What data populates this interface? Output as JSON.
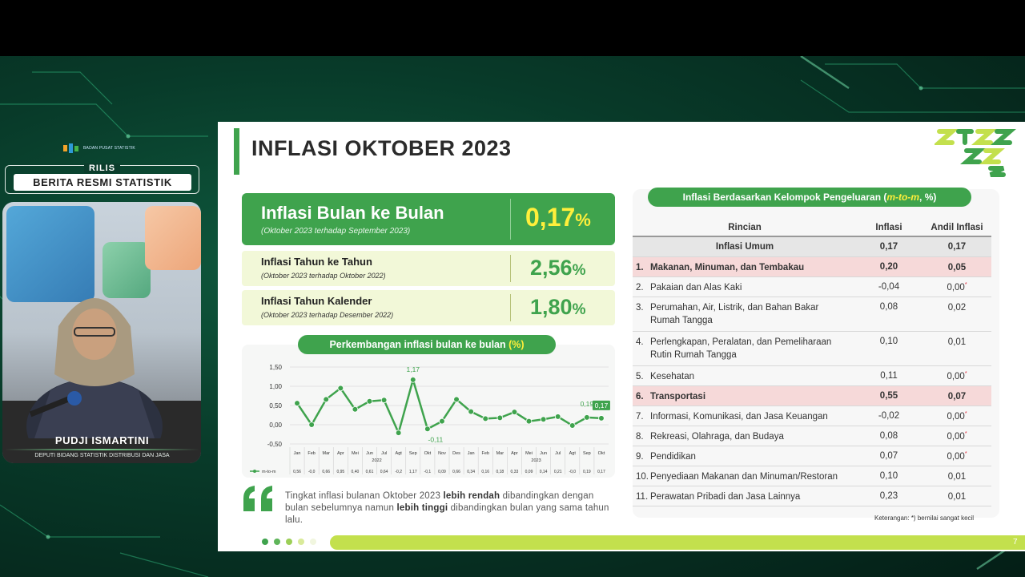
{
  "broadcast": {
    "org_logo_text": "BADAN PUSAT STATISTIK",
    "rilis": "RILIS",
    "brs": "BERITA RESMI STATISTIK",
    "speaker_name": "PUDJI ISMARTINI",
    "speaker_title": "DEPUTI BIDANG STATISTIK DISTRIBUSI DAN JASA"
  },
  "slide": {
    "title": "INFLASI OKTOBER 2023",
    "page_number": "7",
    "mtm": {
      "label": "Inflasi Bulan ke Bulan",
      "sub": "(Oktober 2023 terhadap September 2023)",
      "value": "0,17",
      "unit": "%"
    },
    "yoy": {
      "label": "Inflasi Tahun ke Tahun",
      "sub": "(Oktober 2023 terhadap Oktober 2022)",
      "value": "2,56",
      "unit": "%"
    },
    "ytd": {
      "label": "Inflasi Tahun Kalender",
      "sub": "(Oktober 2023 terhadap Desember 2022)",
      "value": "1,80",
      "unit": "%"
    },
    "chart_pill_main": "Perkembangan inflasi bulan ke bulan ",
    "chart_pill_unit": "(%)",
    "quote_1": "Tingkat inflasi bulanan Oktober 2023 ",
    "quote_b1": "lebih rendah",
    "quote_2": " dibandingkan dengan bulan sebelumnya namun ",
    "quote_b2": "lebih tinggi",
    "quote_3": " dibandingkan bulan yang sama tahun lalu.",
    "table_pill_main": "Inflasi Berdasarkan Kelompok Pengeluaran (",
    "table_pill_em": "m-to-m",
    "table_pill_end": ", %)",
    "note": "Keterangan: *) bernilai sangat kecil"
  },
  "table": {
    "headers": [
      "Rincian",
      "Inflasi",
      "Andil Inflasi"
    ],
    "umum": {
      "label": "Inflasi Umum",
      "inflasi": "0,17",
      "andil": "0,17"
    },
    "rows": [
      {
        "no": "1.",
        "label": "Makanan, Minuman, dan Tembakau",
        "inflasi": "0,20",
        "andil": "0,05",
        "star": "",
        "hl": true
      },
      {
        "no": "2.",
        "label": "Pakaian dan Alas Kaki",
        "inflasi": "-0,04",
        "andil": "0,00",
        "star": "*",
        "hl": false
      },
      {
        "no": "3.",
        "label": "Perumahan, Air, Listrik, dan Bahan Bakar",
        "label2": "Rumah Tangga",
        "inflasi": "0,08",
        "andil": "0,02",
        "star": "",
        "hl": false
      },
      {
        "no": "4.",
        "label": "Perlengkapan, Peralatan, dan Pemeliharaan",
        "label2": "Rutin Rumah Tangga",
        "inflasi": "0,10",
        "andil": "0,01",
        "star": "",
        "hl": false
      },
      {
        "no": "5.",
        "label": "Kesehatan",
        "inflasi": "0,11",
        "andil": "0,00",
        "star": "*",
        "hl": false
      },
      {
        "no": "6.",
        "label": "Transportasi",
        "inflasi": "0,55",
        "andil": "0,07",
        "star": "",
        "hl": true
      },
      {
        "no": "7.",
        "label": "Informasi, Komunikasi, dan Jasa Keuangan",
        "inflasi": "-0,02",
        "andil": "0,00",
        "star": "*",
        "hl": false
      },
      {
        "no": "8.",
        "label": "Rekreasi, Olahraga, dan Budaya",
        "inflasi": "0,08",
        "andil": "0,00",
        "star": "*",
        "hl": false
      },
      {
        "no": "9.",
        "label": "Pendidikan",
        "inflasi": "0,07",
        "andil": "0,00",
        "star": "*",
        "hl": false
      },
      {
        "no": "10.",
        "label": "Penyediaan Makanan dan Minuman/Restoran",
        "inflasi": "0,10",
        "andil": "0,01",
        "star": "",
        "hl": false
      },
      {
        "no": "11.",
        "label": "Perawatan Pribadi dan Jasa Lainnya",
        "inflasi": "0,23",
        "andil": "0,01",
        "star": "",
        "hl": false
      }
    ]
  },
  "chart_data": {
    "type": "line",
    "categories": [
      "Jan",
      "Feb",
      "Mar",
      "Apr",
      "Mei",
      "Jun",
      "Jul",
      "Agt",
      "Sep",
      "Okt",
      "Nov",
      "Des",
      "Jan",
      "Feb",
      "Mar",
      "Apr",
      "Mei",
      "Jun",
      "Jul",
      "Agt",
      "Sep",
      "Okt"
    ],
    "year_labels": [
      "2022",
      "2023"
    ],
    "series": [
      {
        "name": "m-to-m",
        "values": [
          0.56,
          0.0,
          0.66,
          0.95,
          0.4,
          0.61,
          0.64,
          -0.21,
          1.17,
          -0.11,
          0.09,
          0.66,
          0.34,
          0.16,
          0.18,
          0.33,
          0.09,
          0.14,
          0.21,
          -0.02,
          0.19,
          0.17
        ],
        "value_labels": [
          "0,56",
          "-0,0",
          "0,66",
          "0,95",
          "0,40",
          "0,61",
          "0,64",
          "-0,2",
          "1,17",
          "-0,1",
          "0,09",
          "0,66",
          "0,34",
          "0,16",
          "0,18",
          "0,33",
          "0,09",
          "0,14",
          "0,21",
          "-0,0",
          "0,19",
          "0,17"
        ]
      }
    ],
    "annotations": [
      "1,17",
      "-0,11",
      "0,19",
      "0,17"
    ],
    "yticks": [
      "1,50",
      "1,00",
      "0,50",
      "0,00",
      "-0,50"
    ],
    "ylim": [
      -0.5,
      1.5
    ],
    "line_color": "#3fa34d",
    "highlight_color": "#3fa34d"
  }
}
